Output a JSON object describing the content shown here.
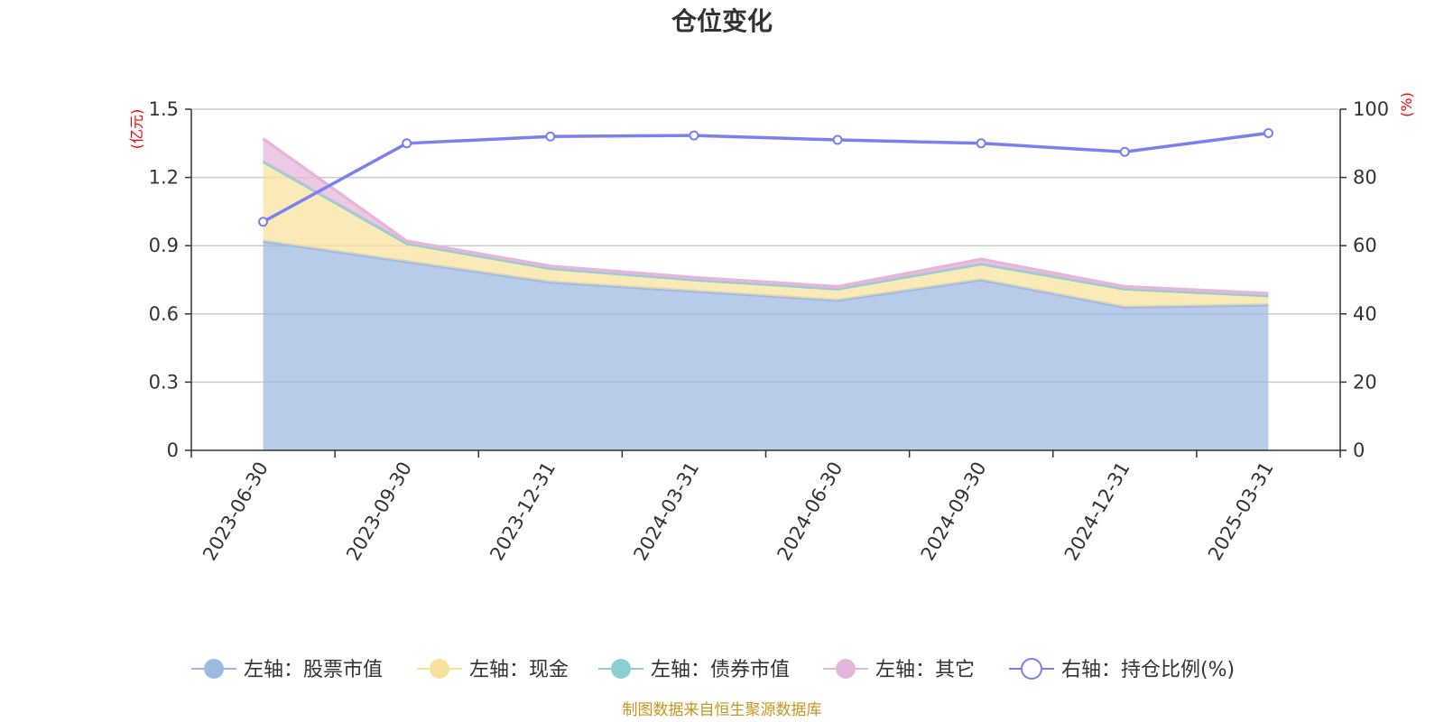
{
  "chart_data": {
    "type": "area",
    "title": "仓位变化",
    "categories": [
      "2023-06-30",
      "2023-09-30",
      "2023-12-31",
      "2024-03-31",
      "2024-06-30",
      "2024-09-30",
      "2024-12-31",
      "2025-03-31"
    ],
    "left_axis": {
      "unit": "(亿元)",
      "ylim": [
        0,
        1.5
      ],
      "ticks": [
        "0",
        "0.3",
        "0.6",
        "0.9",
        "1.2",
        "1.5"
      ]
    },
    "right_axis": {
      "unit": "(%)",
      "ylim": [
        0,
        100
      ],
      "ticks": [
        "0",
        "20",
        "40",
        "60",
        "80",
        "100"
      ]
    },
    "series": [
      {
        "name": "左轴：股票市值",
        "axis": "left",
        "stack": true,
        "color": "#9db9e2",
        "values": [
          0.92,
          0.83,
          0.74,
          0.7,
          0.66,
          0.75,
          0.63,
          0.64
        ]
      },
      {
        "name": "左轴：现金",
        "axis": "left",
        "stack": true,
        "color": "#f7e29c",
        "values": [
          0.35,
          0.08,
          0.06,
          0.05,
          0.05,
          0.07,
          0.08,
          0.04
        ]
      },
      {
        "name": "左轴：债券市值",
        "axis": "left",
        "stack": true,
        "color": "#8dd0d0",
        "values": [
          0,
          0,
          0,
          0,
          0,
          0,
          0,
          0
        ]
      },
      {
        "name": "左轴：其它",
        "axis": "left",
        "stack": true,
        "color": "#e6b6da",
        "values": [
          0.1,
          0.01,
          0.01,
          0.01,
          0.01,
          0.02,
          0.01,
          0.01
        ]
      },
      {
        "name": "右轴：持仓比例(%)",
        "axis": "right",
        "color": "#7b7ff0",
        "values": [
          67,
          90,
          92,
          92.3,
          91,
          90,
          87.5,
          93
        ]
      }
    ],
    "grid": true,
    "legend_position": "bottom"
  },
  "source_text": "制图数据来自恒生聚源数据库"
}
